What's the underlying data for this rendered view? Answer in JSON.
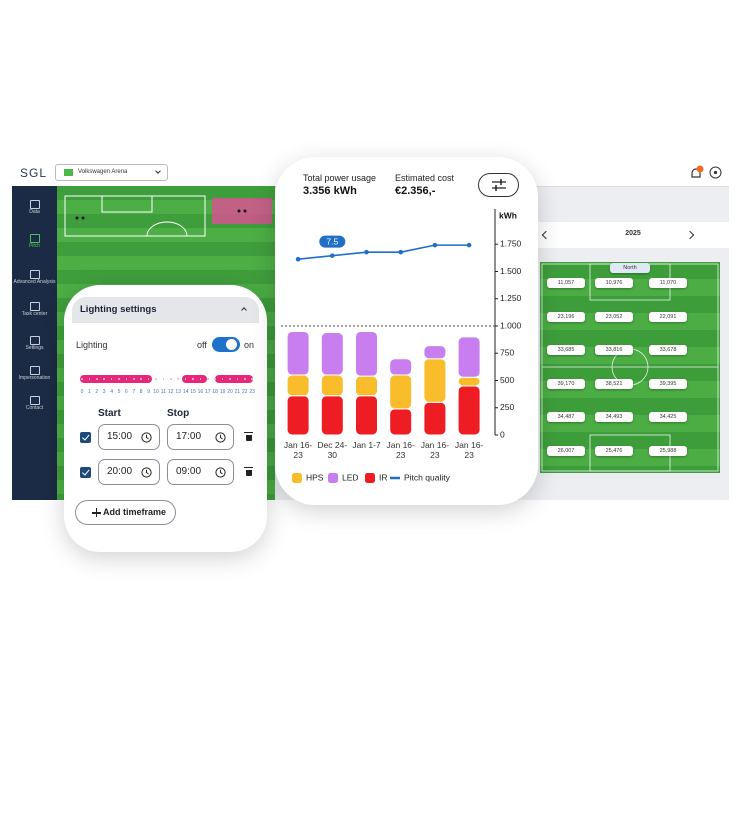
{
  "top_bar": {
    "logo": "SGL",
    "venue": "Volkswagen Arena"
  },
  "sidebar": {
    "items": [
      "Data",
      "Pitch",
      "Advanced Analysis",
      "Task center",
      "Settings",
      "Impersonation",
      "Contact"
    ]
  },
  "heatmap": {
    "year": "2025",
    "orientation": "North",
    "rows": [
      [
        "11,057",
        "10,976",
        "11,070"
      ],
      [
        "23,196",
        "23,052",
        "22,091"
      ],
      [
        "33,685",
        "33,816",
        "33,678"
      ],
      [
        "39,170",
        "38,521",
        "39,395"
      ],
      [
        "34,487",
        "34,493",
        "34,425"
      ],
      [
        "26,007",
        "25,476",
        "25,988"
      ]
    ]
  },
  "lighting": {
    "title": "Lighting settings",
    "label": "Lighting",
    "off": "off",
    "on": "on",
    "hours": [
      0,
      1,
      2,
      3,
      4,
      5,
      6,
      7,
      8,
      9,
      10,
      11,
      12,
      13,
      14,
      15,
      16,
      17,
      18,
      19,
      20,
      21,
      22,
      23
    ],
    "start": "Start",
    "stop": "Stop",
    "timeframes": [
      {
        "start": "15:00",
        "stop": "17:00"
      },
      {
        "start": "20:00",
        "stop": "09:00"
      }
    ],
    "add_button": "Add timeframe"
  },
  "summary": {
    "power_label": "Total power usage",
    "power_value": "3.356 kWh",
    "cost_label": "Estimated cost",
    "cost_value": "€2.356,-"
  },
  "chart_data": {
    "type": "stacked_bar_line",
    "y_axis_label": "kWh",
    "categories": [
      "Jan 16-23",
      "Dec 24-30",
      "Jan 1-7",
      "Jan 16-23",
      "Jan 16-23",
      "Jan 16-23"
    ],
    "series": [
      {
        "name": "HPS",
        "color": "#f9bd2c",
        "values": [
          190,
          190,
          180,
          310,
          400,
          80
        ]
      },
      {
        "name": "LED",
        "color": "#c97ef0",
        "values": [
          400,
          390,
          410,
          150,
          120,
          370
        ]
      },
      {
        "name": "IR",
        "color": "#ee1d23",
        "values": [
          360,
          360,
          360,
          240,
          300,
          450
        ]
      },
      {
        "name": "Pitch quality",
        "color": "#1f6fc8",
        "axis": "y2",
        "values": [
          7.4,
          7.5,
          7.6,
          7.6,
          7.8,
          7.8
        ]
      }
    ],
    "ylim": [
      0,
      2000
    ],
    "yticks": [
      0,
      250,
      500,
      750,
      {
        "value": 1000,
        "label": "1.000"
      },
      {
        "value": 1250,
        "label": "1.250"
      },
      {
        "value": 1500,
        "label": "1.500"
      },
      {
        "value": 1750,
        "label": "1.750"
      }
    ],
    "y2lim": [
      2.4,
      8.6
    ],
    "reference_line": 1000,
    "grid": false,
    "legend": "bottom"
  }
}
